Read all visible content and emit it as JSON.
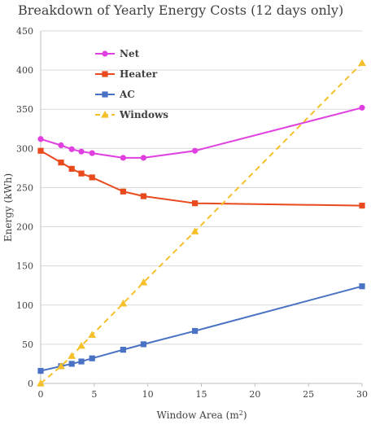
{
  "chart_data": {
    "type": "line",
    "title": "Breakdown of Yearly Energy Costs (12 days only)",
    "xlabel": "Window Area (m",
    "xlabel_sup": "2",
    "xlabel_end": ")",
    "ylabel": "Energy (kWh)",
    "xlim": [
      0,
      30
    ],
    "ylim": [
      0,
      450
    ],
    "xticks": [
      0,
      5,
      10,
      15,
      20,
      25,
      30
    ],
    "yticks": [
      0,
      50,
      100,
      150,
      200,
      250,
      300,
      350,
      400,
      450
    ],
    "grid": "horizontal",
    "legend_position": "top-left",
    "series": [
      {
        "name": "Net",
        "color": "#e040e0",
        "marker": "circle",
        "dash": "solid",
        "x": [
          0,
          1.9,
          2.9,
          3.8,
          4.8,
          7.7,
          9.6,
          14.4,
          30
        ],
        "y": [
          312,
          304,
          299,
          296,
          294,
          288,
          288,
          297,
          352
        ]
      },
      {
        "name": "Heater",
        "color": "#e8491d",
        "marker": "square",
        "dash": "solid",
        "x": [
          0,
          1.9,
          2.9,
          3.8,
          4.8,
          7.7,
          9.6,
          14.4,
          30
        ],
        "y": [
          297,
          282,
          274,
          268,
          263,
          245,
          239,
          230,
          227
        ]
      },
      {
        "name": "AC",
        "color": "#4a72c4",
        "marker": "square",
        "dash": "solid",
        "x": [
          0,
          1.9,
          2.9,
          3.8,
          4.8,
          7.7,
          9.6,
          14.4,
          30
        ],
        "y": [
          16,
          22,
          25,
          28,
          32,
          43,
          50,
          67,
          124
        ]
      },
      {
        "name": "Windows",
        "color": "#f5c02a",
        "marker": "triangle",
        "dash": "dashed",
        "x": [
          0,
          1.9,
          2.9,
          3.8,
          4.8,
          7.7,
          9.6,
          14.4,
          30
        ],
        "y": [
          0,
          22,
          35,
          48,
          62,
          102,
          129,
          194,
          409
        ]
      }
    ]
  }
}
